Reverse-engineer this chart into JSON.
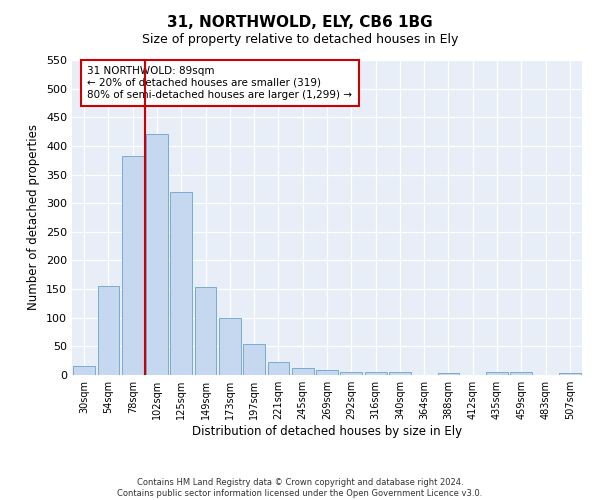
{
  "title": "31, NORTHWOLD, ELY, CB6 1BG",
  "subtitle": "Size of property relative to detached houses in Ely",
  "xlabel": "Distribution of detached houses by size in Ely",
  "ylabel": "Number of detached properties",
  "bar_labels": [
    "30sqm",
    "54sqm",
    "78sqm",
    "102sqm",
    "125sqm",
    "149sqm",
    "173sqm",
    "197sqm",
    "221sqm",
    "245sqm",
    "269sqm",
    "292sqm",
    "316sqm",
    "340sqm",
    "364sqm",
    "388sqm",
    "412sqm",
    "435sqm",
    "459sqm",
    "483sqm",
    "507sqm"
  ],
  "bar_values": [
    15,
    155,
    383,
    420,
    320,
    153,
    100,
    55,
    22,
    13,
    8,
    5,
    5,
    5,
    0,
    3,
    0,
    5,
    5,
    0,
    3
  ],
  "bar_color": "#c5d8f0",
  "bar_edgecolor": "#7aabcf",
  "ylim": [
    0,
    550
  ],
  "yticks": [
    0,
    50,
    100,
    150,
    200,
    250,
    300,
    350,
    400,
    450,
    500,
    550
  ],
  "vline_x": 2.5,
  "vline_color": "#cc0000",
  "annotation_line1": "31 NORTHWOLD: 89sqm",
  "annotation_line2": "← 20% of detached houses are smaller (319)",
  "annotation_line3": "80% of semi-detached houses are larger (1,299) →",
  "annotation_box_color": "#cc0000",
  "footer_line1": "Contains HM Land Registry data © Crown copyright and database right 2024.",
  "footer_line2": "Contains public sector information licensed under the Open Government Licence v3.0.",
  "bg_color": "#ffffff",
  "plot_bg_color": "#e8eef8"
}
